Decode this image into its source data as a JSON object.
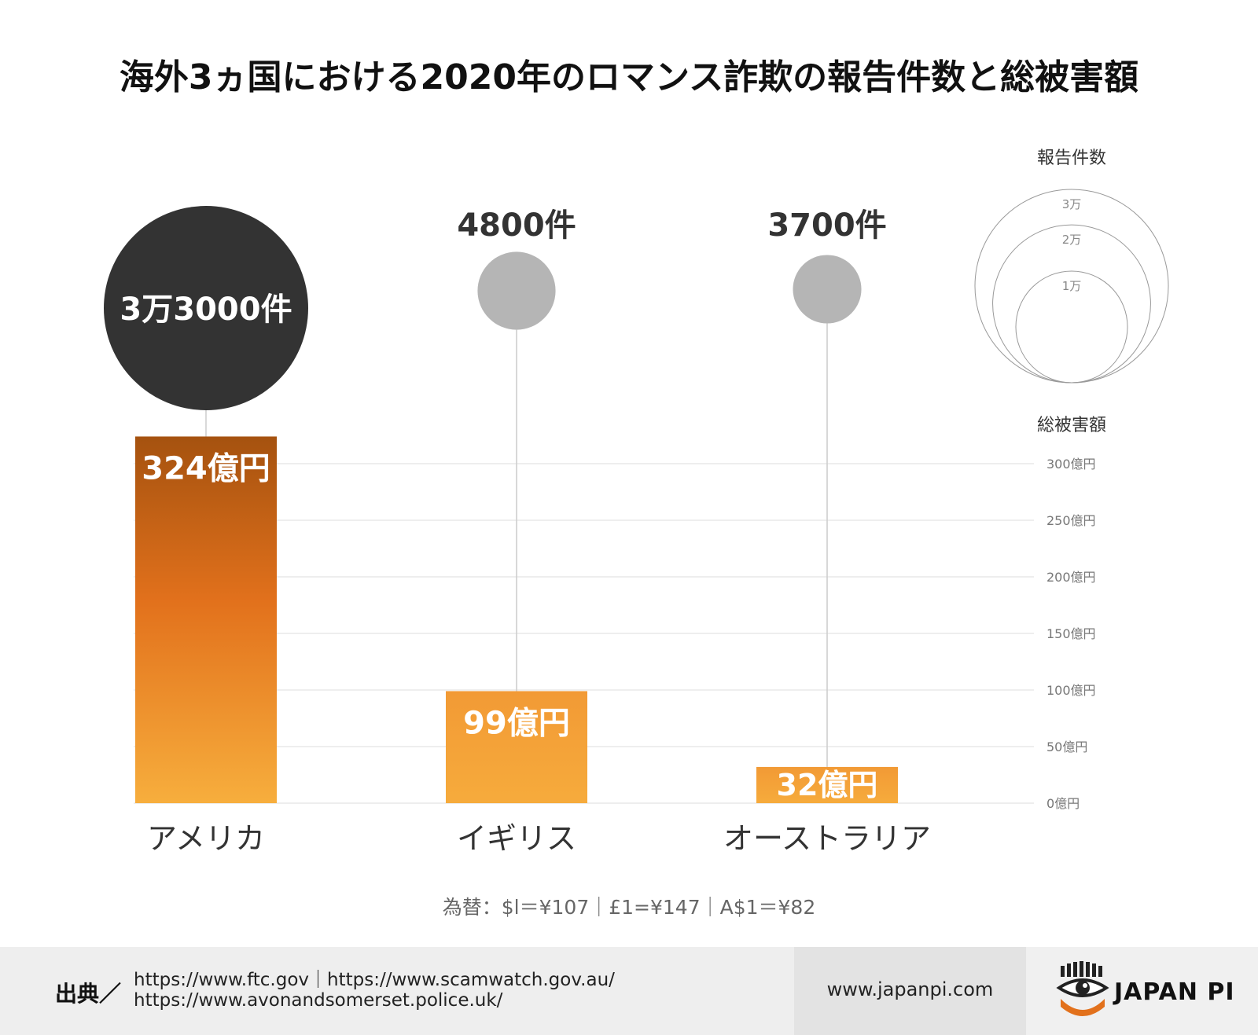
{
  "title": "海外3ヵ国における2020年のロマンス詐欺の報告件数と総被害額",
  "chart_data": {
    "type": "bar",
    "categories": [
      "アメリカ",
      "イギリス",
      "オーストラリア"
    ],
    "values": [
      324,
      99,
      32
    ],
    "value_labels": [
      "324億円",
      "99億円",
      "32億円"
    ],
    "ylim": [
      0,
      300
    ],
    "yticks": [
      {
        "value": 0,
        "label": "0億円"
      },
      {
        "value": 50,
        "label": "50億円"
      },
      {
        "value": 100,
        "label": "100億円"
      },
      {
        "value": 150,
        "label": "150億円"
      },
      {
        "value": 200,
        "label": "200億円"
      },
      {
        "value": 250,
        "label": "250億円"
      },
      {
        "value": 300,
        "label": "300億円"
      }
    ],
    "amount_legend_title": "総被害額",
    "report_counts": [
      33000,
      4800,
      3700
    ],
    "report_count_labels": [
      "3万3000件",
      "4800件",
      "3700件"
    ],
    "size_legend": {
      "title": "報告件数",
      "levels": [
        {
          "value": 30000,
          "label": "3万"
        },
        {
          "value": 20000,
          "label": "2万"
        },
        {
          "value": 10000,
          "label": "1万"
        }
      ]
    },
    "colors": {
      "bar_top_dark": "#a5520f",
      "bar_mid": "#e2711c",
      "bar_light": "#f4a33a",
      "bubble_highlight": "#333333",
      "bubble": "#b5b5b5",
      "grid": "#dddddd"
    }
  },
  "note": "為替：$l＝¥107｜£1=¥147｜A$1＝¥82",
  "footer": {
    "source_label": "出典／",
    "source_line1": "https://www.ftc.gov｜https://www.scamwatch.gov.au/",
    "source_line2": "https://www.avonandsomerset.police.uk/",
    "site_url": "www.japanpi.com",
    "logo_text": "JAPAN PI"
  }
}
